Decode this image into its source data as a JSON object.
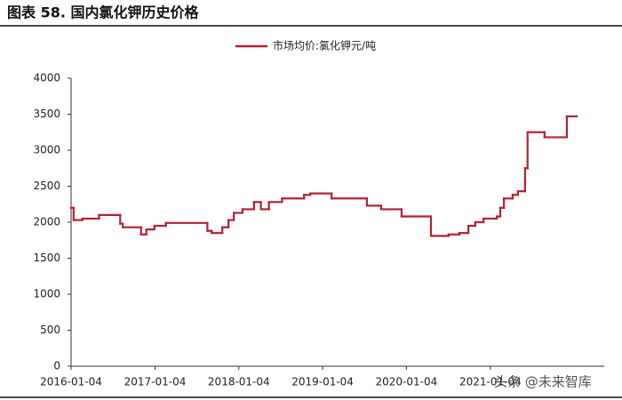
{
  "chart_data": {
    "type": "line",
    "title": "图表 58. 国内氯化钾历史价格",
    "interpolation": "step-after",
    "x": [
      "2016-01-04",
      "2016-01-15",
      "2016-02-22",
      "2016-05-05",
      "2016-08-05",
      "2016-08-16",
      "2016-11-04",
      "2016-11-27",
      "2017-01-01",
      "2017-02-20",
      "2017-08-20",
      "2017-09-08",
      "2017-10-24",
      "2017-11-20",
      "2017-12-13",
      "2018-01-20",
      "2018-03-11",
      "2018-04-10",
      "2018-05-15",
      "2018-07-11",
      "2018-10-15",
      "2018-11-11",
      "2019-02-12",
      "2019-07-16",
      "2019-09-16",
      "2019-12-14",
      "2020-04-20",
      "2020-07-06",
      "2020-08-22",
      "2020-09-30",
      "2020-10-30",
      "2020-12-05",
      "2021-02-01",
      "2021-02-16",
      "2021-03-04",
      "2021-04-11",
      "2021-05-04",
      "2021-06-04",
      "2021-06-15",
      "2021-08-28",
      "2021-12-03",
      "2022-01-15"
    ],
    "series": [
      {
        "name": "市场均价:氯化钾元/吨",
        "color": "#b52230",
        "values": [
          2200,
          2030,
          2050,
          2100,
          1980,
          1930,
          1830,
          1900,
          1950,
          1990,
          1880,
          1850,
          1930,
          2030,
          2130,
          2180,
          2280,
          2180,
          2280,
          2330,
          2380,
          2400,
          2330,
          2230,
          2180,
          2080,
          1810,
          1830,
          1850,
          1950,
          2000,
          2050,
          2080,
          2200,
          2330,
          2380,
          2430,
          2750,
          3250,
          3180,
          3470,
          3470
        ]
      }
    ],
    "xlim": [
      "2016-01-04",
      "2022-05-15"
    ],
    "xticks": [
      "2016-01-04",
      "2017-01-04",
      "2018-01-04",
      "2019-01-04",
      "2020-01-04",
      "2021-01-04"
    ],
    "ylim": [
      0,
      4000
    ],
    "yticks": [
      0,
      500,
      1000,
      1500,
      2000,
      2500,
      3000,
      3500,
      4000
    ],
    "grid": false,
    "legend": "top",
    "watermark": "头条 @未来智库"
  }
}
